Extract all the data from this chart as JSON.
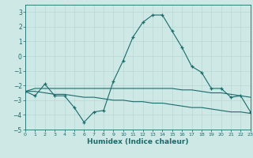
{
  "xlabel": "Humidex (Indice chaleur)",
  "x_values": [
    0,
    1,
    2,
    3,
    4,
    5,
    6,
    7,
    8,
    9,
    10,
    11,
    12,
    13,
    14,
    15,
    16,
    17,
    18,
    19,
    20,
    21,
    22,
    23
  ],
  "line1": [
    -2.4,
    -2.7,
    -1.9,
    -2.7,
    -2.7,
    -3.5,
    -4.5,
    -3.8,
    -3.7,
    -1.7,
    -0.3,
    1.3,
    2.3,
    2.8,
    2.8,
    1.7,
    0.6,
    -0.7,
    -1.1,
    -2.2,
    -2.2,
    -2.8,
    -2.7,
    -3.8
  ],
  "line2": [
    -2.4,
    -2.2,
    -2.2,
    -2.2,
    -2.2,
    -2.2,
    -2.2,
    -2.2,
    -2.2,
    -2.2,
    -2.2,
    -2.2,
    -2.2,
    -2.2,
    -2.2,
    -2.2,
    -2.3,
    -2.3,
    -2.4,
    -2.5,
    -2.5,
    -2.6,
    -2.7,
    -2.8
  ],
  "line3": [
    -2.4,
    -2.4,
    -2.5,
    -2.6,
    -2.6,
    -2.7,
    -2.8,
    -2.8,
    -2.9,
    -3.0,
    -3.0,
    -3.1,
    -3.1,
    -3.2,
    -3.2,
    -3.3,
    -3.4,
    -3.5,
    -3.5,
    -3.6,
    -3.7,
    -3.8,
    -3.8,
    -3.9
  ],
  "color": "#1a6b6b",
  "bg_color": "#cde8e5",
  "grid_color": "#b8d8d5",
  "ylim": [
    -5,
    3.5
  ],
  "yticks": [
    -5,
    -4,
    -3,
    -2,
    -1,
    0,
    1,
    2,
    3
  ],
  "xticks": [
    0,
    1,
    2,
    3,
    4,
    5,
    6,
    7,
    8,
    9,
    10,
    11,
    12,
    13,
    14,
    15,
    16,
    17,
    18,
    19,
    20,
    21,
    22,
    23
  ]
}
